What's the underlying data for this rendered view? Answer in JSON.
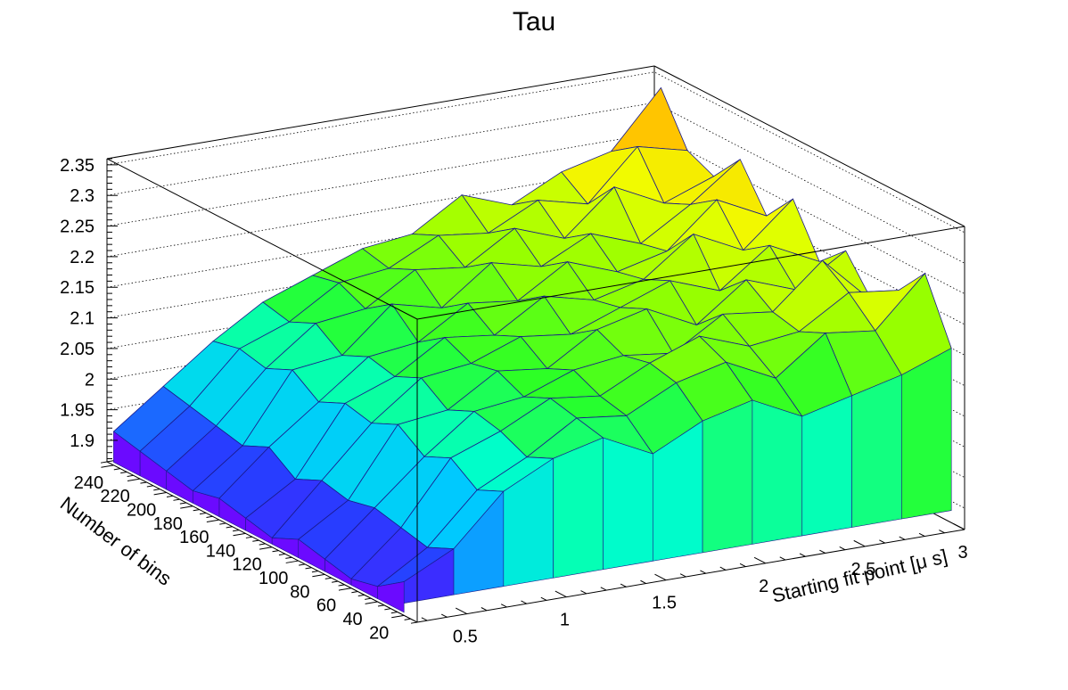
{
  "chart_data": {
    "type": "surface",
    "title": "Tau",
    "xlabel": "Starting fit point [μ s]",
    "ylabel": "Number of bins",
    "zlabel": "",
    "xlim": [
      0.25,
      3.0
    ],
    "ylim": [
      10,
      245
    ],
    "zlim": [
      1.865,
      2.36
    ],
    "x_ticks": [
      "0.5",
      "1",
      "1.5",
      "2",
      "2.5",
      "3"
    ],
    "y_ticks": [
      "20",
      "40",
      "60",
      "80",
      "100",
      "120",
      "140",
      "160",
      "180",
      "200",
      "220",
      "240"
    ],
    "z_ticks": [
      "1.9",
      "1.95",
      "2",
      "2.05",
      "2.1",
      "2.15",
      "2.2",
      "2.25",
      "2.3",
      "2.35"
    ],
    "x": [
      0.25,
      0.5,
      0.75,
      1.0,
      1.25,
      1.5,
      1.75,
      2.0,
      2.25,
      2.5,
      2.75,
      3.0
    ],
    "y": [
      20,
      40,
      60,
      80,
      100,
      120,
      140,
      160,
      180,
      200,
      220,
      240
    ],
    "z": [
      [
        1.92,
        1.96,
        2.04,
        2.08,
        2.1,
        2.06,
        2.1,
        2.12,
        2.08,
        2.1,
        2.12,
        2.15
      ],
      [
        1.89,
        1.94,
        2.02,
        2.06,
        2.11,
        2.1,
        2.14,
        2.16,
        2.12,
        2.18,
        2.17,
        2.25
      ],
      [
        1.88,
        1.95,
        2.05,
        2.08,
        2.12,
        2.11,
        2.15,
        2.18,
        2.15,
        2.16,
        2.21,
        2.2
      ],
      [
        1.89,
        1.96,
        2.03,
        2.09,
        2.1,
        2.13,
        2.14,
        2.13,
        2.18,
        2.17,
        2.24,
        2.16
      ],
      [
        1.9,
        1.95,
        2.06,
        2.07,
        2.12,
        2.11,
        2.16,
        2.18,
        2.14,
        2.2,
        2.17,
        2.22
      ],
      [
        1.88,
        1.96,
        2.04,
        2.1,
        2.11,
        2.14,
        2.13,
        2.16,
        2.19,
        2.16,
        2.22,
        2.18
      ],
      [
        1.89,
        1.94,
        2.05,
        2.08,
        2.13,
        2.12,
        2.17,
        2.15,
        2.17,
        2.23,
        2.19,
        2.26
      ],
      [
        1.9,
        1.97,
        2.03,
        2.09,
        2.1,
        2.15,
        2.14,
        2.19,
        2.16,
        2.18,
        2.25,
        2.21
      ],
      [
        1.89,
        1.95,
        2.06,
        2.07,
        2.14,
        2.12,
        2.18,
        2.16,
        2.2,
        2.17,
        2.22,
        2.28
      ],
      [
        1.9,
        1.96,
        2.04,
        2.1,
        2.11,
        2.16,
        2.15,
        2.2,
        2.17,
        2.24,
        2.2,
        2.23
      ],
      [
        1.91,
        1.97,
        2.05,
        2.08,
        2.13,
        2.14,
        2.18,
        2.17,
        2.21,
        2.19,
        2.27,
        2.25
      ],
      [
        1.92,
        1.98,
        2.04,
        2.09,
        2.12,
        2.15,
        2.16,
        2.21,
        2.18,
        2.22,
        2.24,
        2.33
      ]
    ],
    "grid": true,
    "colormap": "rainbow",
    "colors": {
      "low": "#7b00ff",
      "high": "#ff0000",
      "mesh": "#1a1a8c",
      "frame": "#000000"
    }
  }
}
